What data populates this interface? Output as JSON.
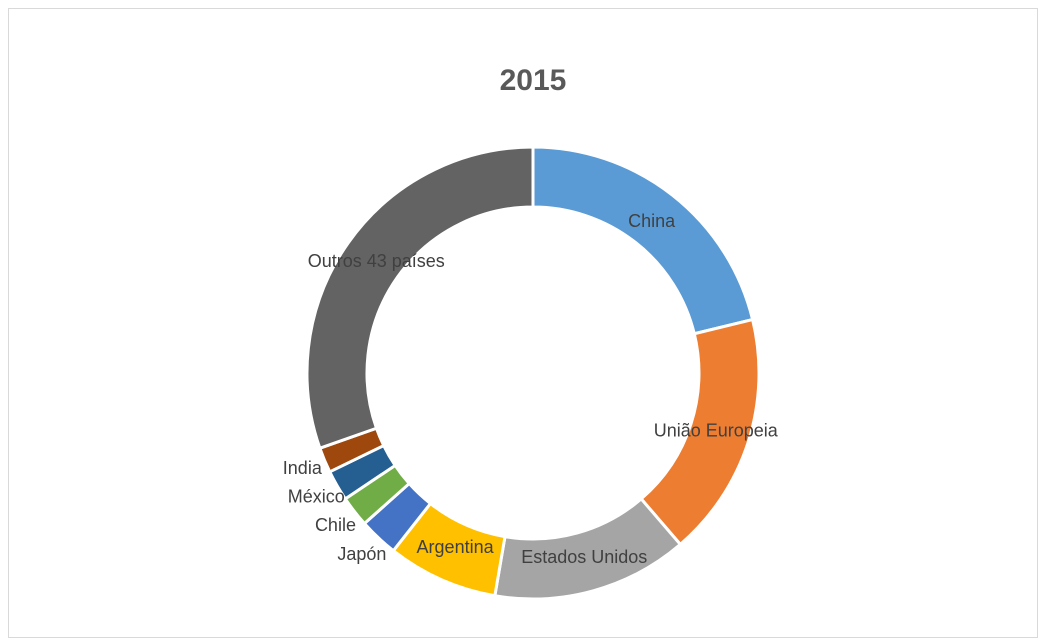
{
  "chart_data": {
    "type": "donut",
    "title": "2015",
    "categories": [
      "China",
      "União Europeia",
      "Estados Unidos",
      "Argentina",
      "Japón",
      "Chile",
      "México",
      "India",
      "Outros 43 países"
    ],
    "values": [
      21.2,
      17.5,
      14,
      7.9,
      2.8,
      2.2,
      2.2,
      1.8,
      30.4
    ],
    "colors": [
      "#5b9bd5",
      "#ed7d31",
      "#a5a5a5",
      "#ffc000",
      "#4472c4",
      "#70ad47",
      "#255e91",
      "#9e480e",
      "#636363"
    ]
  }
}
